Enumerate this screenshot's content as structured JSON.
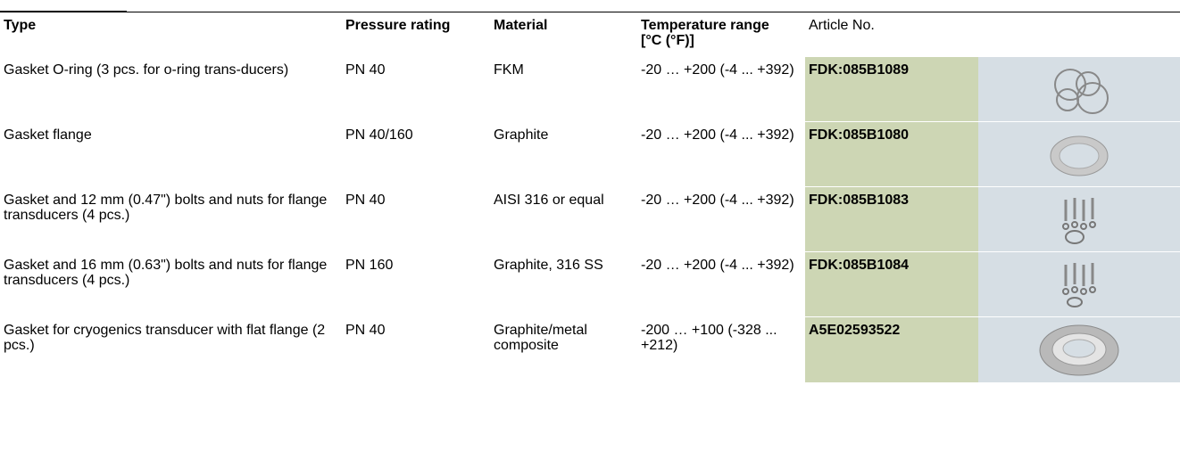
{
  "table": {
    "header": [
      "Type",
      "Pressure rating",
      "Material",
      "Temperature range [°C (°F)]",
      "Article No."
    ],
    "rows": [
      [
        "Gasket O-ring (3 pcs. for o-ring trans-ducers)",
        "PN 40",
        "FKM",
        "-20 … +200 (-4 ... +392)",
        "FDK:085B1089"
      ],
      [
        "Gasket flange",
        "PN 40/160",
        "Graphite",
        "-20 … +200 (-4 ... +392)",
        "FDK:085B1080"
      ],
      [
        "Gasket and 12 mm (0.47\") bolts and nuts for flange transducers (4 pcs.)",
        "PN 40",
        "AISI 316 or equal",
        "-20 … +200 (-4 ... +392)",
        "FDK:085B1083"
      ],
      [
        "Gasket and 16 mm (0.63\") bolts and nuts for flange transducers (4 pcs.)",
        "PN 160",
        "Graphite, 316 SS",
        "-20 … +200 (-4 ... +392)",
        "FDK:085B1084"
      ],
      [
        "Gasket for cryogenics transducer with flat flange (2 pcs.)",
        "PN 40",
        "Graphite/metal composite",
        "-200 … +100 (-328 ... +212)",
        "A5E02593522"
      ]
    ]
  }
}
